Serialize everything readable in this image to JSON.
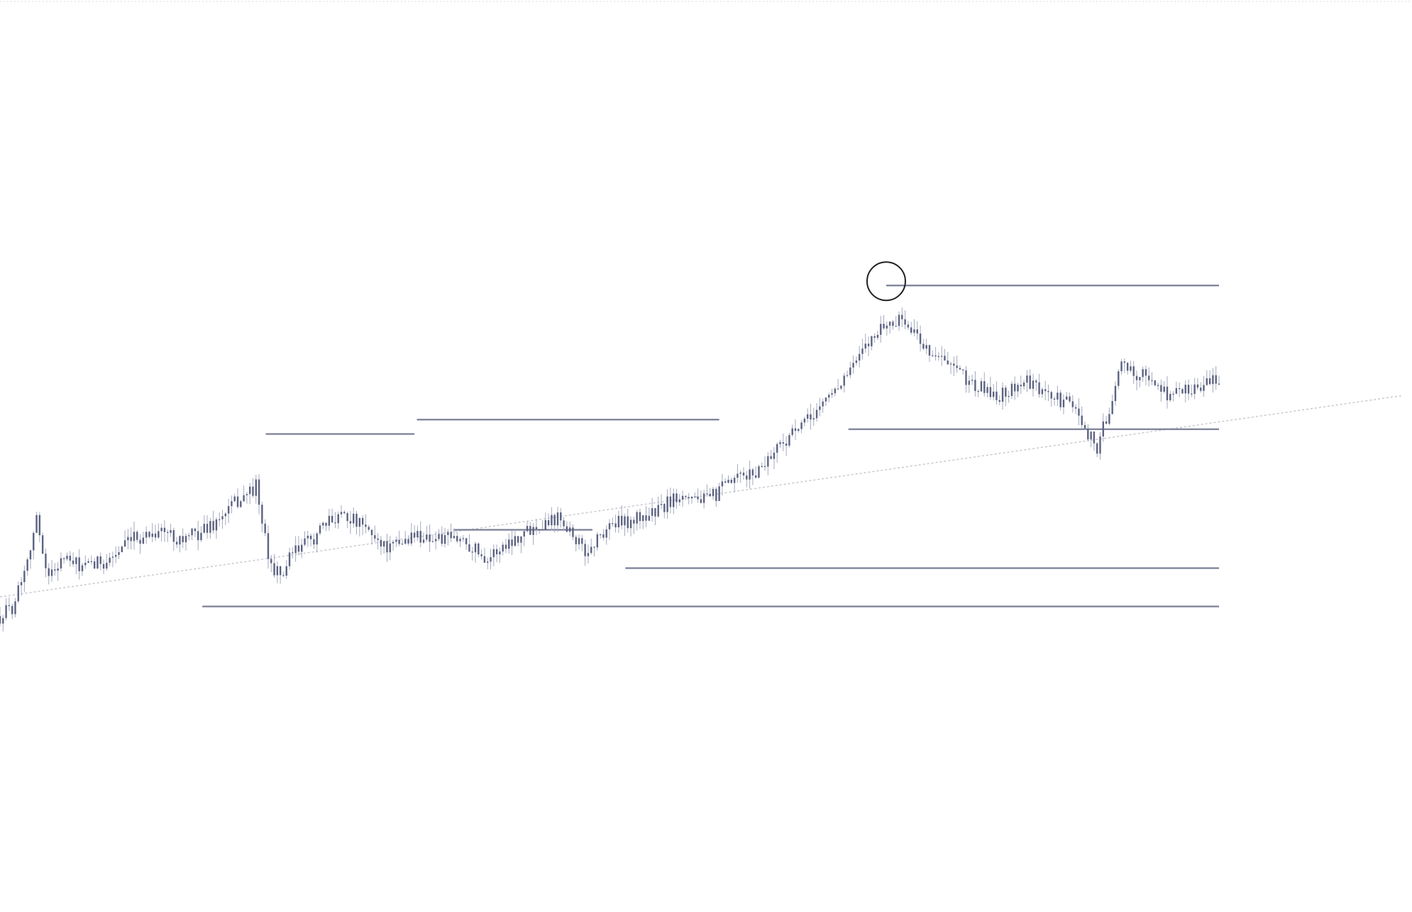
{
  "colors": {
    "background": "#ffffff",
    "candle": "#5c6280",
    "candle_wick": "#a4a9bd",
    "level_line": "#7a7f96",
    "trendline": "#c4c6d0",
    "top_border": "#d8d8d8",
    "marker": "#222222"
  },
  "chart_data": {
    "type": "line",
    "title": "",
    "xlabel": "",
    "ylabel": "",
    "grid": false,
    "legend": "none",
    "xlim": [
      0,
      100
    ],
    "ylim": [
      0,
      100
    ],
    "series": [
      {
        "style": "bars",
        "x": [
          0,
          1,
          2,
          3,
          4,
          5,
          7,
          9,
          11,
          13,
          15,
          16,
          18,
          19,
          21,
          22,
          23,
          24,
          26,
          28,
          30,
          32,
          34,
          36,
          38,
          40,
          42,
          44,
          46,
          48,
          50,
          52,
          54,
          56,
          58,
          60,
          62,
          64,
          66,
          68,
          70,
          72,
          74,
          76,
          78,
          80,
          82,
          84,
          86,
          88,
          90,
          92,
          94,
          96,
          98,
          100
        ],
        "y": [
          20,
          22,
          30,
          40,
          28,
          32,
          30,
          32,
          36,
          38,
          36,
          37,
          40,
          43,
          47,
          32,
          28,
          33,
          37,
          42,
          38,
          34,
          37,
          36,
          36,
          32,
          36,
          39,
          41,
          33,
          39,
          40,
          42,
          46,
          44,
          48,
          50,
          56,
          60,
          66,
          72,
          80,
          82,
          76,
          72,
          68,
          66,
          69,
          66,
          64,
          55,
          72,
          70,
          66,
          68,
          69
        ]
      }
    ],
    "annotations": [
      {
        "kind": "horizontal-level",
        "x_start": 16.6,
        "x_end": 100,
        "y": 22
      },
      {
        "kind": "horizontal-level",
        "x_start": 21.8,
        "x_end": 34,
        "y": 58
      },
      {
        "kind": "horizontal-level",
        "x_start": 34.2,
        "x_end": 59,
        "y": 61
      },
      {
        "kind": "horizontal-level",
        "x_start": 37.2,
        "x_end": 48.6,
        "y": 38
      },
      {
        "kind": "horizontal-level",
        "x_start": 51.3,
        "x_end": 100,
        "y": 30
      },
      {
        "kind": "horizontal-level",
        "x_start": 69.6,
        "x_end": 100,
        "y": 59
      },
      {
        "kind": "horizontal-level",
        "x_start": 72.7,
        "x_end": 100,
        "y": 89
      },
      {
        "kind": "trendline",
        "x1": 0,
        "y1": 24,
        "x2": 115,
        "y2": 66
      },
      {
        "kind": "circle-marker",
        "x": 72.7,
        "y": 89
      }
    ]
  }
}
